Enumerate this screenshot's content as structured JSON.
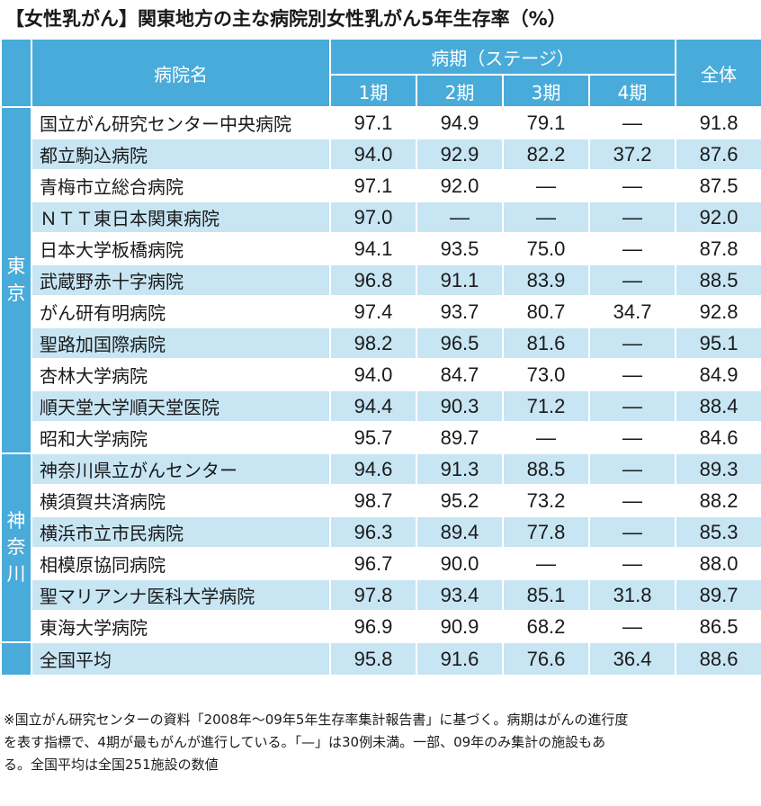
{
  "title": "【女性乳がん】関東地方の主な病院別女性乳がん5年生存率（%）",
  "header": {
    "hospital": "病院名",
    "stage_group": "病期（ステージ）",
    "stages": [
      "1期",
      "2期",
      "3期",
      "4期"
    ],
    "total": "全体"
  },
  "regions": [
    {
      "label": "東\n京"
    },
    {
      "label": "神\n奈\n川"
    }
  ],
  "rows": [
    {
      "name": "国立がん研究センター中央病院",
      "s1": "97.1",
      "s2": "94.9",
      "s3": "79.1",
      "s4": "—",
      "total": "91.8"
    },
    {
      "name": "都立駒込病院",
      "s1": "94.0",
      "s2": "92.9",
      "s3": "82.2",
      "s4": "37.2",
      "total": "87.6"
    },
    {
      "name": "青梅市立総合病院",
      "s1": "97.1",
      "s2": "92.0",
      "s3": "—",
      "s4": "—",
      "total": "87.5"
    },
    {
      "name": "ＮＴＴ東日本関東病院",
      "s1": "97.0",
      "s2": "—",
      "s3": "—",
      "s4": "—",
      "total": "92.0"
    },
    {
      "name": "日本大学板橋病院",
      "s1": "94.1",
      "s2": "93.5",
      "s3": "75.0",
      "s4": "—",
      "total": "87.8"
    },
    {
      "name": "武蔵野赤十字病院",
      "s1": "96.8",
      "s2": "91.1",
      "s3": "83.9",
      "s4": "—",
      "total": "88.5"
    },
    {
      "name": "がん研有明病院",
      "s1": "97.4",
      "s2": "93.7",
      "s3": "80.7",
      "s4": "34.7",
      "total": "92.8"
    },
    {
      "name": "聖路加国際病院",
      "s1": "98.2",
      "s2": "96.5",
      "s3": "81.6",
      "s4": "—",
      "total": "95.1"
    },
    {
      "name": "杏林大学病院",
      "s1": "94.0",
      "s2": "84.7",
      "s3": "73.0",
      "s4": "—",
      "total": "84.9"
    },
    {
      "name": "順天堂大学順天堂医院",
      "s1": "94.4",
      "s2": "90.3",
      "s3": "71.2",
      "s4": "—",
      "total": "88.4"
    },
    {
      "name": "昭和大学病院",
      "s1": "95.7",
      "s2": "89.7",
      "s3": "—",
      "s4": "—",
      "total": "84.6"
    },
    {
      "name": "神奈川県立がんセンター",
      "s1": "94.6",
      "s2": "91.3",
      "s3": "88.5",
      "s4": "—",
      "total": "89.3"
    },
    {
      "name": "横須賀共済病院",
      "s1": "98.7",
      "s2": "95.2",
      "s3": "73.2",
      "s4": "—",
      "total": "88.2"
    },
    {
      "name": "横浜市立市民病院",
      "s1": "96.3",
      "s2": "89.4",
      "s3": "77.8",
      "s4": "—",
      "total": "85.3"
    },
    {
      "name": "相模原協同病院",
      "s1": "96.7",
      "s2": "90.0",
      "s3": "—",
      "s4": "—",
      "total": "88.0"
    },
    {
      "name": "聖マリアンナ医科大学病院",
      "s1": "97.8",
      "s2": "93.4",
      "s3": "85.1",
      "s4": "31.8",
      "total": "89.7"
    },
    {
      "name": "東海大学病院",
      "s1": "96.9",
      "s2": "90.9",
      "s3": "68.2",
      "s4": "—",
      "total": "86.5"
    }
  ],
  "national": {
    "name": "全国平均",
    "s1": "95.8",
    "s2": "91.6",
    "s3": "76.6",
    "s4": "36.4",
    "total": "88.6"
  },
  "notes": [
    "※国立がん研究センターの資料「2008年〜09年5年生存率集計報告書」に基づく。病期はがんの進行度",
    "を表す指標で、4期が最もがんが進行している。「—」は30例未満。一部、09年のみ集計の施設もあ",
    "る。全国平均は全国251施設の数値"
  ],
  "colors": {
    "header_bg": "#49abd9",
    "stripe": "#c7e5f3"
  }
}
